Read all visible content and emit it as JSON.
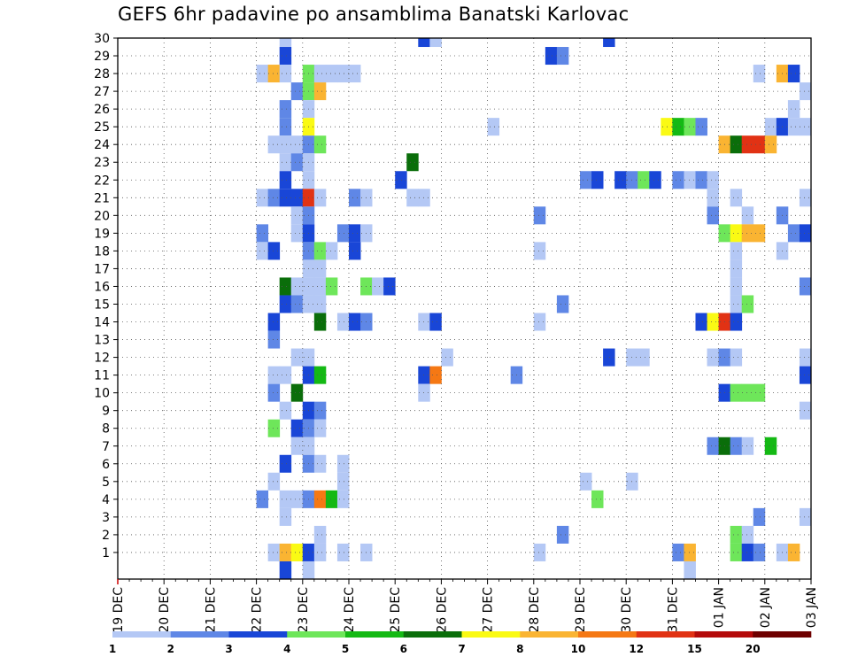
{
  "chart_data": {
    "type": "heatmap",
    "title": "GEFS 6hr padavine po ansamblima Banatski Karlovac",
    "x_ticks": [
      "19 DEC",
      "20 DEC",
      "21 DEC",
      "22 DEC",
      "23 DEC",
      "24 DEC",
      "25 DEC",
      "26 DEC",
      "27 DEC",
      "28 DEC",
      "29 DEC",
      "30 DEC",
      "31 DEC",
      "01 JAN",
      "02 JAN",
      "03 JAN"
    ],
    "y_ticks": [
      "1",
      "2",
      "3",
      "4",
      "5",
      "6",
      "7",
      "8",
      "9",
      "10",
      "11",
      "12",
      "13",
      "14",
      "15",
      "16",
      "17",
      "18",
      "19",
      "20",
      "21",
      "22",
      "23",
      "24",
      "25",
      "26",
      "27",
      "28",
      "29",
      "30"
    ],
    "x_range": [
      "19 DEC",
      "03 JAN"
    ],
    "y_range": [
      0,
      30
    ],
    "grid": true,
    "legend": {
      "placement": "bottom",
      "labels": [
        "1",
        "2",
        "3",
        "4",
        "5",
        "6",
        "7",
        "8",
        "10",
        "12",
        "15",
        "20"
      ],
      "colors": [
        "#b4c8f5",
        "#5f87e6",
        "#1946d7",
        "#6ee65a",
        "#14b914",
        "#0a6e0a",
        "#fafa14",
        "#fab432",
        "#f57814",
        "#e13214",
        "#b40a0a",
        "#6e0000"
      ]
    },
    "cells": [
      [
        3.5,
        30,
        1
      ],
      [
        6.5,
        30,
        3
      ],
      [
        6.75,
        30,
        1
      ],
      [
        10.5,
        30,
        3
      ],
      [
        3.5,
        29,
        3
      ],
      [
        9.25,
        29,
        3
      ],
      [
        9.5,
        29,
        2
      ],
      [
        3,
        28,
        1
      ],
      [
        3.25,
        28,
        8
      ],
      [
        3.5,
        28,
        1
      ],
      [
        4,
        28,
        4
      ],
      [
        4.25,
        28,
        1
      ],
      [
        4.5,
        28,
        1
      ],
      [
        4.75,
        28,
        1
      ],
      [
        5,
        28,
        1
      ],
      [
        13.75,
        28,
        1
      ],
      [
        14.25,
        28,
        8
      ],
      [
        14.5,
        28,
        3
      ],
      [
        3.75,
        27,
        2
      ],
      [
        4,
        27,
        4
      ],
      [
        4.25,
        27,
        8
      ],
      [
        14.75,
        27,
        1
      ],
      [
        3.5,
        26,
        2
      ],
      [
        4,
        26,
        1
      ],
      [
        14.5,
        26,
        1
      ],
      [
        3.5,
        25,
        2
      ],
      [
        4,
        25,
        7
      ],
      [
        8,
        25,
        1
      ],
      [
        11.75,
        25,
        7
      ],
      [
        12,
        25,
        5
      ],
      [
        12.25,
        25,
        4
      ],
      [
        12.5,
        25,
        2
      ],
      [
        14,
        25,
        1
      ],
      [
        14.25,
        25,
        3
      ],
      [
        14.5,
        25,
        1
      ],
      [
        14.75,
        25,
        1
      ],
      [
        3.25,
        24,
        1
      ],
      [
        3.5,
        24,
        1
      ],
      [
        3.75,
        24,
        1
      ],
      [
        4,
        24,
        2
      ],
      [
        4.25,
        24,
        4
      ],
      [
        13,
        24,
        8
      ],
      [
        13.25,
        24,
        6
      ],
      [
        13.5,
        24,
        10
      ],
      [
        13.75,
        24,
        10
      ],
      [
        14,
        24,
        8
      ],
      [
        3.5,
        23,
        1
      ],
      [
        3.75,
        23,
        2
      ],
      [
        4,
        23,
        1
      ],
      [
        6.25,
        23,
        6
      ],
      [
        3.5,
        22,
        3
      ],
      [
        4,
        22,
        1
      ],
      [
        6,
        22,
        3
      ],
      [
        10,
        22,
        2
      ],
      [
        10.25,
        22,
        3
      ],
      [
        10.75,
        22,
        3
      ],
      [
        11,
        22,
        2
      ],
      [
        11.25,
        22,
        4
      ],
      [
        11.5,
        22,
        3
      ],
      [
        12,
        22,
        2
      ],
      [
        12.25,
        22,
        1
      ],
      [
        12.5,
        22,
        2
      ],
      [
        12.75,
        22,
        1
      ],
      [
        3,
        21,
        1
      ],
      [
        3.25,
        21,
        2
      ],
      [
        3.5,
        21,
        3
      ],
      [
        3.75,
        21,
        3
      ],
      [
        4,
        21,
        10
      ],
      [
        4.25,
        21,
        1
      ],
      [
        5,
        21,
        2
      ],
      [
        5.25,
        21,
        1
      ],
      [
        6.25,
        21,
        1
      ],
      [
        6.5,
        21,
        1
      ],
      [
        12.75,
        21,
        1
      ],
      [
        13.25,
        21,
        1
      ],
      [
        14.75,
        21,
        1
      ],
      [
        3.75,
        20,
        1
      ],
      [
        4,
        20,
        2
      ],
      [
        9,
        20,
        2
      ],
      [
        12.75,
        20,
        2
      ],
      [
        13.5,
        20,
        1
      ],
      [
        14.25,
        20,
        2
      ],
      [
        3,
        19,
        2
      ],
      [
        3.75,
        19,
        1
      ],
      [
        4,
        19,
        3
      ],
      [
        4.75,
        19,
        2
      ],
      [
        5,
        19,
        3
      ],
      [
        5.25,
        19,
        1
      ],
      [
        13,
        19,
        4
      ],
      [
        13.25,
        19,
        7
      ],
      [
        13.5,
        19,
        8
      ],
      [
        13.75,
        19,
        8
      ],
      [
        14.5,
        19,
        2
      ],
      [
        14.75,
        19,
        3
      ],
      [
        3,
        18,
        1
      ],
      [
        3.25,
        18,
        3
      ],
      [
        4,
        18,
        2
      ],
      [
        4.25,
        18,
        4
      ],
      [
        4.5,
        18,
        1
      ],
      [
        5,
        18,
        3
      ],
      [
        9,
        18,
        1
      ],
      [
        13.25,
        18,
        1
      ],
      [
        14.25,
        18,
        1
      ],
      [
        4,
        17,
        1
      ],
      [
        4.25,
        17,
        1
      ],
      [
        13.25,
        17,
        1
      ],
      [
        3.5,
        16,
        6
      ],
      [
        3.75,
        16,
        1
      ],
      [
        4,
        16,
        1
      ],
      [
        4.25,
        16,
        1
      ],
      [
        4.5,
        16,
        4
      ],
      [
        5.25,
        16,
        4
      ],
      [
        5.5,
        16,
        1
      ],
      [
        5.75,
        16,
        3
      ],
      [
        13.25,
        16,
        1
      ],
      [
        14.75,
        16,
        2
      ],
      [
        3.5,
        15,
        3
      ],
      [
        3.75,
        15,
        2
      ],
      [
        4,
        15,
        1
      ],
      [
        4.25,
        15,
        1
      ],
      [
        9.5,
        15,
        2
      ],
      [
        13.25,
        15,
        1
      ],
      [
        13.5,
        15,
        4
      ],
      [
        3.25,
        14,
        3
      ],
      [
        4.25,
        14,
        6
      ],
      [
        4.75,
        14,
        1
      ],
      [
        5,
        14,
        3
      ],
      [
        5.25,
        14,
        2
      ],
      [
        6.5,
        14,
        1
      ],
      [
        6.75,
        14,
        3
      ],
      [
        9,
        14,
        1
      ],
      [
        12.5,
        14,
        3
      ],
      [
        12.75,
        14,
        7
      ],
      [
        13,
        14,
        10
      ],
      [
        13.25,
        14,
        3
      ],
      [
        3.25,
        13,
        2
      ],
      [
        4,
        12,
        1
      ],
      [
        12.75,
        12,
        1
      ],
      [
        3.75,
        12,
        1
      ],
      [
        7,
        12,
        1
      ],
      [
        10.5,
        12,
        3
      ],
      [
        11,
        12,
        1
      ],
      [
        11.25,
        12,
        1
      ],
      [
        13,
        12,
        2
      ],
      [
        13.25,
        12,
        1
      ],
      [
        14.75,
        12,
        1
      ],
      [
        3.25,
        11,
        1
      ],
      [
        3.5,
        11,
        1
      ],
      [
        4,
        11,
        3
      ],
      [
        4.25,
        11,
        5
      ],
      [
        6.5,
        11,
        3
      ],
      [
        6.75,
        11,
        9
      ],
      [
        8.5,
        11,
        2
      ],
      [
        14.75,
        11,
        3
      ],
      [
        3.25,
        10,
        2
      ],
      [
        3.75,
        10,
        6
      ],
      [
        6.5,
        10,
        1
      ],
      [
        13,
        10,
        3
      ],
      [
        13.25,
        10,
        4
      ],
      [
        13.5,
        10,
        4
      ],
      [
        13.75,
        10,
        4
      ],
      [
        3.5,
        9,
        1
      ],
      [
        4,
        9,
        3
      ],
      [
        4.25,
        9,
        2
      ],
      [
        14.75,
        9,
        1
      ],
      [
        3.25,
        8,
        4
      ],
      [
        3.75,
        8,
        3
      ],
      [
        4,
        8,
        2
      ],
      [
        4.25,
        8,
        1
      ],
      [
        3.75,
        7,
        1
      ],
      [
        4,
        7,
        1
      ],
      [
        12.75,
        7,
        2
      ],
      [
        13,
        7,
        6
      ],
      [
        13.25,
        7,
        2
      ],
      [
        13.5,
        7,
        1
      ],
      [
        14,
        7,
        5
      ],
      [
        3.5,
        6,
        3
      ],
      [
        4,
        6,
        2
      ],
      [
        4.25,
        6,
        1
      ],
      [
        4.75,
        6,
        1
      ],
      [
        3.25,
        5,
        1
      ],
      [
        4.75,
        5,
        1
      ],
      [
        10,
        5,
        1
      ],
      [
        11,
        5,
        1
      ],
      [
        3,
        4,
        2
      ],
      [
        3.5,
        4,
        1
      ],
      [
        3.75,
        4,
        1
      ],
      [
        4,
        4,
        2
      ],
      [
        4.25,
        4,
        9
      ],
      [
        4.5,
        4,
        5
      ],
      [
        4.75,
        4,
        1
      ],
      [
        10.25,
        4,
        4
      ],
      [
        3.5,
        3,
        1
      ],
      [
        13.75,
        3,
        2
      ],
      [
        14.75,
        3,
        1
      ],
      [
        4.25,
        2,
        1
      ],
      [
        9.5,
        2,
        2
      ],
      [
        13.25,
        2,
        4
      ],
      [
        13.5,
        2,
        1
      ],
      [
        3.25,
        1,
        1
      ],
      [
        3.5,
        1,
        8
      ],
      [
        3.75,
        1,
        7
      ],
      [
        4,
        1,
        3
      ],
      [
        4.25,
        1,
        1
      ],
      [
        4.75,
        1,
        1
      ],
      [
        5.25,
        1,
        1
      ],
      [
        9,
        1,
        1
      ],
      [
        12,
        1,
        2
      ],
      [
        12.25,
        1,
        8
      ],
      [
        13.25,
        1,
        4
      ],
      [
        13.5,
        1,
        3
      ],
      [
        13.75,
        1,
        2
      ],
      [
        14.25,
        1,
        1
      ],
      [
        14.5,
        1,
        8
      ],
      [
        3.5,
        0,
        3
      ],
      [
        4,
        0,
        1
      ],
      [
        12.25,
        0,
        1
      ]
    ]
  }
}
